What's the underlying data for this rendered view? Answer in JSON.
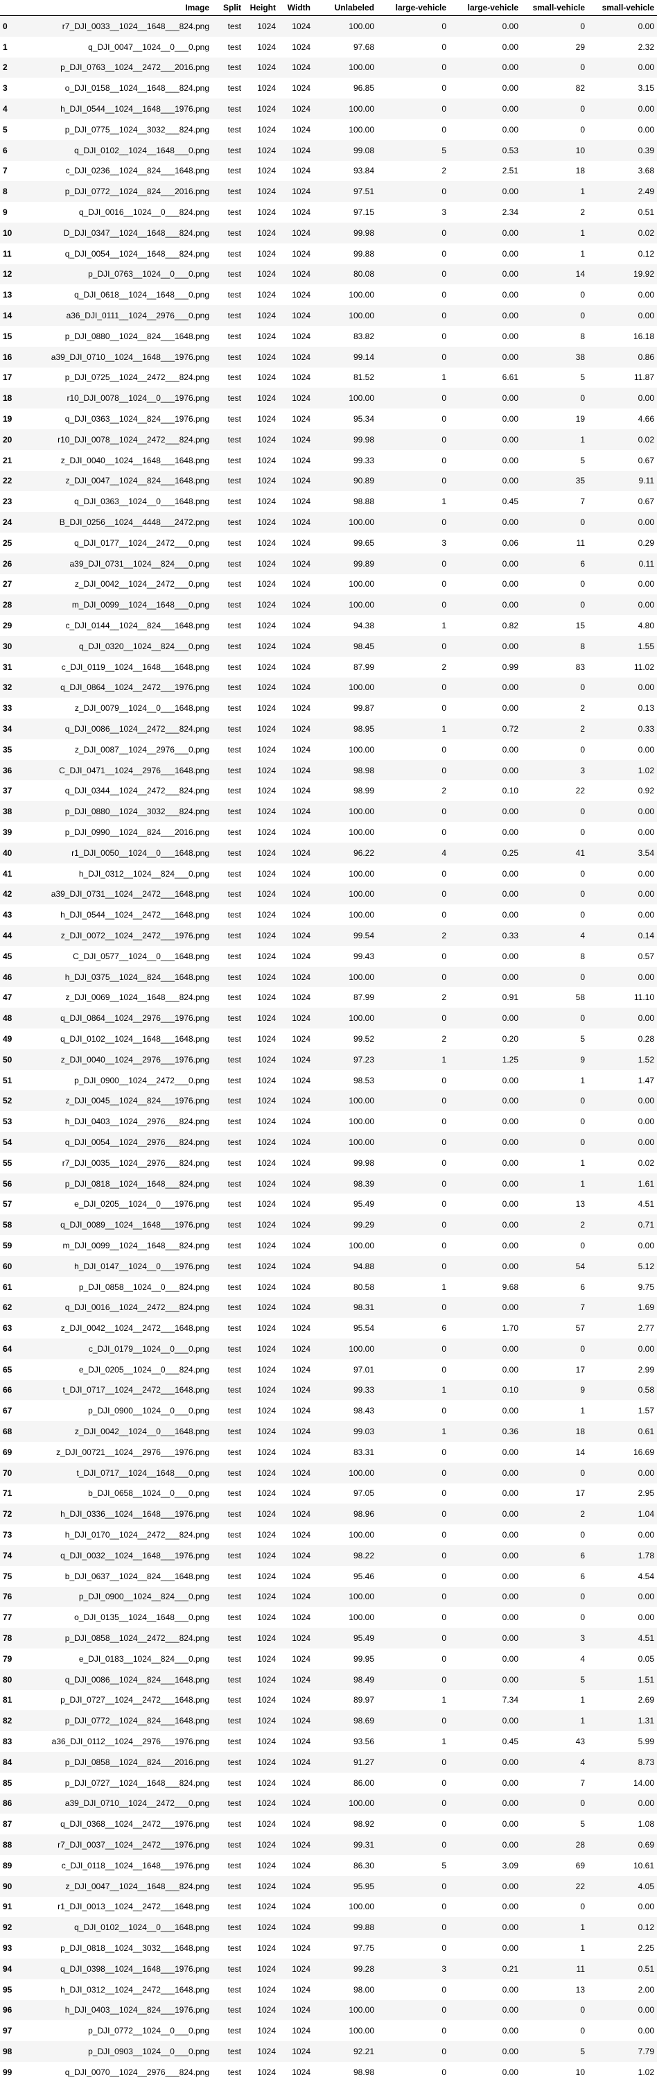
{
  "columns": [
    "",
    "Image",
    "Split",
    "Height",
    "Width",
    "Unlabeled",
    "large-vehicle",
    "large-vehicle",
    "small-vehicle",
    "small-vehicle"
  ],
  "rows": [
    [
      "0",
      "r7_DJI_0033__1024__1648___824.png",
      "test",
      "1024",
      "1024",
      "100.00",
      "0",
      "0.00",
      "0",
      "0.00"
    ],
    [
      "1",
      "q_DJI_0047__1024__0___0.png",
      "test",
      "1024",
      "1024",
      "97.68",
      "0",
      "0.00",
      "29",
      "2.32"
    ],
    [
      "2",
      "p_DJI_0763__1024__2472___2016.png",
      "test",
      "1024",
      "1024",
      "100.00",
      "0",
      "0.00",
      "0",
      "0.00"
    ],
    [
      "3",
      "o_DJI_0158__1024__1648___824.png",
      "test",
      "1024",
      "1024",
      "96.85",
      "0",
      "0.00",
      "82",
      "3.15"
    ],
    [
      "4",
      "h_DJI_0544__1024__1648___1976.png",
      "test",
      "1024",
      "1024",
      "100.00",
      "0",
      "0.00",
      "0",
      "0.00"
    ],
    [
      "5",
      "p_DJI_0775__1024__3032___824.png",
      "test",
      "1024",
      "1024",
      "100.00",
      "0",
      "0.00",
      "0",
      "0.00"
    ],
    [
      "6",
      "q_DJI_0102__1024__1648___0.png",
      "test",
      "1024",
      "1024",
      "99.08",
      "5",
      "0.53",
      "10",
      "0.39"
    ],
    [
      "7",
      "c_DJI_0236__1024__824___1648.png",
      "test",
      "1024",
      "1024",
      "93.84",
      "2",
      "2.51",
      "18",
      "3.68"
    ],
    [
      "8",
      "p_DJI_0772__1024__824___2016.png",
      "test",
      "1024",
      "1024",
      "97.51",
      "0",
      "0.00",
      "1",
      "2.49"
    ],
    [
      "9",
      "q_DJI_0016__1024__0___824.png",
      "test",
      "1024",
      "1024",
      "97.15",
      "3",
      "2.34",
      "2",
      "0.51"
    ],
    [
      "10",
      "D_DJI_0347__1024__1648___824.png",
      "test",
      "1024",
      "1024",
      "99.98",
      "0",
      "0.00",
      "1",
      "0.02"
    ],
    [
      "11",
      "q_DJI_0054__1024__1648___824.png",
      "test",
      "1024",
      "1024",
      "99.88",
      "0",
      "0.00",
      "1",
      "0.12"
    ],
    [
      "12",
      "p_DJI_0763__1024__0___0.png",
      "test",
      "1024",
      "1024",
      "80.08",
      "0",
      "0.00",
      "14",
      "19.92"
    ],
    [
      "13",
      "q_DJI_0618__1024__1648___0.png",
      "test",
      "1024",
      "1024",
      "100.00",
      "0",
      "0.00",
      "0",
      "0.00"
    ],
    [
      "14",
      "a36_DJI_0111__1024__2976___0.png",
      "test",
      "1024",
      "1024",
      "100.00",
      "0",
      "0.00",
      "0",
      "0.00"
    ],
    [
      "15",
      "p_DJI_0880__1024__824___1648.png",
      "test",
      "1024",
      "1024",
      "83.82",
      "0",
      "0.00",
      "8",
      "16.18"
    ],
    [
      "16",
      "a39_DJI_0710__1024__1648___1976.png",
      "test",
      "1024",
      "1024",
      "99.14",
      "0",
      "0.00",
      "38",
      "0.86"
    ],
    [
      "17",
      "p_DJI_0725__1024__2472___824.png",
      "test",
      "1024",
      "1024",
      "81.52",
      "1",
      "6.61",
      "5",
      "11.87"
    ],
    [
      "18",
      "r10_DJI_0078__1024__0___1976.png",
      "test",
      "1024",
      "1024",
      "100.00",
      "0",
      "0.00",
      "0",
      "0.00"
    ],
    [
      "19",
      "q_DJI_0363__1024__824___1976.png",
      "test",
      "1024",
      "1024",
      "95.34",
      "0",
      "0.00",
      "19",
      "4.66"
    ],
    [
      "20",
      "r10_DJI_0078__1024__2472___824.png",
      "test",
      "1024",
      "1024",
      "99.98",
      "0",
      "0.00",
      "1",
      "0.02"
    ],
    [
      "21",
      "z_DJI_0040__1024__1648___1648.png",
      "test",
      "1024",
      "1024",
      "99.33",
      "0",
      "0.00",
      "5",
      "0.67"
    ],
    [
      "22",
      "z_DJI_0047__1024__824___1648.png",
      "test",
      "1024",
      "1024",
      "90.89",
      "0",
      "0.00",
      "35",
      "9.11"
    ],
    [
      "23",
      "q_DJI_0363__1024__0___1648.png",
      "test",
      "1024",
      "1024",
      "98.88",
      "1",
      "0.45",
      "7",
      "0.67"
    ],
    [
      "24",
      "B_DJI_0256__1024__4448___2472.png",
      "test",
      "1024",
      "1024",
      "100.00",
      "0",
      "0.00",
      "0",
      "0.00"
    ],
    [
      "25",
      "q_DJI_0177__1024__2472___0.png",
      "test",
      "1024",
      "1024",
      "99.65",
      "3",
      "0.06",
      "11",
      "0.29"
    ],
    [
      "26",
      "a39_DJI_0731__1024__824___0.png",
      "test",
      "1024",
      "1024",
      "99.89",
      "0",
      "0.00",
      "6",
      "0.11"
    ],
    [
      "27",
      "z_DJI_0042__1024__2472___0.png",
      "test",
      "1024",
      "1024",
      "100.00",
      "0",
      "0.00",
      "0",
      "0.00"
    ],
    [
      "28",
      "m_DJI_0099__1024__1648___0.png",
      "test",
      "1024",
      "1024",
      "100.00",
      "0",
      "0.00",
      "0",
      "0.00"
    ],
    [
      "29",
      "c_DJI_0144__1024__824___1648.png",
      "test",
      "1024",
      "1024",
      "94.38",
      "1",
      "0.82",
      "15",
      "4.80"
    ],
    [
      "30",
      "q_DJI_0320__1024__824___0.png",
      "test",
      "1024",
      "1024",
      "98.45",
      "0",
      "0.00",
      "8",
      "1.55"
    ],
    [
      "31",
      "c_DJI_0119__1024__1648___1648.png",
      "test",
      "1024",
      "1024",
      "87.99",
      "2",
      "0.99",
      "83",
      "11.02"
    ],
    [
      "32",
      "q_DJI_0864__1024__2472___1976.png",
      "test",
      "1024",
      "1024",
      "100.00",
      "0",
      "0.00",
      "0",
      "0.00"
    ],
    [
      "33",
      "z_DJI_0079__1024__0___1648.png",
      "test",
      "1024",
      "1024",
      "99.87",
      "0",
      "0.00",
      "2",
      "0.13"
    ],
    [
      "34",
      "q_DJI_0086__1024__2472___824.png",
      "test",
      "1024",
      "1024",
      "98.95",
      "1",
      "0.72",
      "2",
      "0.33"
    ],
    [
      "35",
      "z_DJI_0087__1024__2976___0.png",
      "test",
      "1024",
      "1024",
      "100.00",
      "0",
      "0.00",
      "0",
      "0.00"
    ],
    [
      "36",
      "C_DJI_0471__1024__2976___1648.png",
      "test",
      "1024",
      "1024",
      "98.98",
      "0",
      "0.00",
      "3",
      "1.02"
    ],
    [
      "37",
      "q_DJI_0344__1024__2472___824.png",
      "test",
      "1024",
      "1024",
      "98.99",
      "2",
      "0.10",
      "22",
      "0.92"
    ],
    [
      "38",
      "p_DJI_0880__1024__3032___824.png",
      "test",
      "1024",
      "1024",
      "100.00",
      "0",
      "0.00",
      "0",
      "0.00"
    ],
    [
      "39",
      "p_DJI_0990__1024__824___2016.png",
      "test",
      "1024",
      "1024",
      "100.00",
      "0",
      "0.00",
      "0",
      "0.00"
    ],
    [
      "40",
      "r1_DJI_0050__1024__0___1648.png",
      "test",
      "1024",
      "1024",
      "96.22",
      "4",
      "0.25",
      "41",
      "3.54"
    ],
    [
      "41",
      "h_DJI_0312__1024__824___0.png",
      "test",
      "1024",
      "1024",
      "100.00",
      "0",
      "0.00",
      "0",
      "0.00"
    ],
    [
      "42",
      "a39_DJI_0731__1024__2472___1648.png",
      "test",
      "1024",
      "1024",
      "100.00",
      "0",
      "0.00",
      "0",
      "0.00"
    ],
    [
      "43",
      "h_DJI_0544__1024__2472___1648.png",
      "test",
      "1024",
      "1024",
      "100.00",
      "0",
      "0.00",
      "0",
      "0.00"
    ],
    [
      "44",
      "z_DJI_0072__1024__2472___1976.png",
      "test",
      "1024",
      "1024",
      "99.54",
      "2",
      "0.33",
      "4",
      "0.14"
    ],
    [
      "45",
      "C_DJI_0577__1024__0___1648.png",
      "test",
      "1024",
      "1024",
      "99.43",
      "0",
      "0.00",
      "8",
      "0.57"
    ],
    [
      "46",
      "h_DJI_0375__1024__824___1648.png",
      "test",
      "1024",
      "1024",
      "100.00",
      "0",
      "0.00",
      "0",
      "0.00"
    ],
    [
      "47",
      "z_DJI_0069__1024__1648___824.png",
      "test",
      "1024",
      "1024",
      "87.99",
      "2",
      "0.91",
      "58",
      "11.10"
    ],
    [
      "48",
      "q_DJI_0864__1024__2976___1976.png",
      "test",
      "1024",
      "1024",
      "100.00",
      "0",
      "0.00",
      "0",
      "0.00"
    ],
    [
      "49",
      "q_DJI_0102__1024__1648___1648.png",
      "test",
      "1024",
      "1024",
      "99.52",
      "2",
      "0.20",
      "5",
      "0.28"
    ],
    [
      "50",
      "z_DJI_0040__1024__2976___1976.png",
      "test",
      "1024",
      "1024",
      "97.23",
      "1",
      "1.25",
      "9",
      "1.52"
    ],
    [
      "51",
      "p_DJI_0900__1024__2472___0.png",
      "test",
      "1024",
      "1024",
      "98.53",
      "0",
      "0.00",
      "1",
      "1.47"
    ],
    [
      "52",
      "z_DJI_0045__1024__824___1976.png",
      "test",
      "1024",
      "1024",
      "100.00",
      "0",
      "0.00",
      "0",
      "0.00"
    ],
    [
      "53",
      "h_DJI_0403__1024__2976___824.png",
      "test",
      "1024",
      "1024",
      "100.00",
      "0",
      "0.00",
      "0",
      "0.00"
    ],
    [
      "54",
      "q_DJI_0054__1024__2976___824.png",
      "test",
      "1024",
      "1024",
      "100.00",
      "0",
      "0.00",
      "0",
      "0.00"
    ],
    [
      "55",
      "r7_DJI_0035__1024__2976___824.png",
      "test",
      "1024",
      "1024",
      "99.98",
      "0",
      "0.00",
      "1",
      "0.02"
    ],
    [
      "56",
      "p_DJI_0818__1024__1648___824.png",
      "test",
      "1024",
      "1024",
      "98.39",
      "0",
      "0.00",
      "1",
      "1.61"
    ],
    [
      "57",
      "e_DJI_0205__1024__0___1976.png",
      "test",
      "1024",
      "1024",
      "95.49",
      "0",
      "0.00",
      "13",
      "4.51"
    ],
    [
      "58",
      "q_DJI_0089__1024__1648___1976.png",
      "test",
      "1024",
      "1024",
      "99.29",
      "0",
      "0.00",
      "2",
      "0.71"
    ],
    [
      "59",
      "m_DJI_0099__1024__1648___824.png",
      "test",
      "1024",
      "1024",
      "100.00",
      "0",
      "0.00",
      "0",
      "0.00"
    ],
    [
      "60",
      "h_DJI_0147__1024__0___1976.png",
      "test",
      "1024",
      "1024",
      "94.88",
      "0",
      "0.00",
      "54",
      "5.12"
    ],
    [
      "61",
      "p_DJI_0858__1024__0___824.png",
      "test",
      "1024",
      "1024",
      "80.58",
      "1",
      "9.68",
      "6",
      "9.75"
    ],
    [
      "62",
      "q_DJI_0016__1024__2472___824.png",
      "test",
      "1024",
      "1024",
      "98.31",
      "0",
      "0.00",
      "7",
      "1.69"
    ],
    [
      "63",
      "z_DJI_0042__1024__2472___1648.png",
      "test",
      "1024",
      "1024",
      "95.54",
      "6",
      "1.70",
      "57",
      "2.77"
    ],
    [
      "64",
      "c_DJI_0179__1024__0___0.png",
      "test",
      "1024",
      "1024",
      "100.00",
      "0",
      "0.00",
      "0",
      "0.00"
    ],
    [
      "65",
      "e_DJI_0205__1024__0___824.png",
      "test",
      "1024",
      "1024",
      "97.01",
      "0",
      "0.00",
      "17",
      "2.99"
    ],
    [
      "66",
      "t_DJI_0717__1024__2472___1648.png",
      "test",
      "1024",
      "1024",
      "99.33",
      "1",
      "0.10",
      "9",
      "0.58"
    ],
    [
      "67",
      "p_DJI_0900__1024__0___0.png",
      "test",
      "1024",
      "1024",
      "98.43",
      "0",
      "0.00",
      "1",
      "1.57"
    ],
    [
      "68",
      "z_DJI_0042__1024__0___1648.png",
      "test",
      "1024",
      "1024",
      "99.03",
      "1",
      "0.36",
      "18",
      "0.61"
    ],
    [
      "69",
      "z_DJI_00721__1024__2976___1976.png",
      "test",
      "1024",
      "1024",
      "83.31",
      "0",
      "0.00",
      "14",
      "16.69"
    ],
    [
      "70",
      "t_DJI_0717__1024__1648___0.png",
      "test",
      "1024",
      "1024",
      "100.00",
      "0",
      "0.00",
      "0",
      "0.00"
    ],
    [
      "71",
      "b_DJI_0658__1024__0___0.png",
      "test",
      "1024",
      "1024",
      "97.05",
      "0",
      "0.00",
      "17",
      "2.95"
    ],
    [
      "72",
      "h_DJI_0336__1024__1648___1976.png",
      "test",
      "1024",
      "1024",
      "98.96",
      "0",
      "0.00",
      "2",
      "1.04"
    ],
    [
      "73",
      "h_DJI_0170__1024__2472___824.png",
      "test",
      "1024",
      "1024",
      "100.00",
      "0",
      "0.00",
      "0",
      "0.00"
    ],
    [
      "74",
      "q_DJI_0032__1024__1648___1976.png",
      "test",
      "1024",
      "1024",
      "98.22",
      "0",
      "0.00",
      "6",
      "1.78"
    ],
    [
      "75",
      "b_DJI_0637__1024__824___1648.png",
      "test",
      "1024",
      "1024",
      "95.46",
      "0",
      "0.00",
      "6",
      "4.54"
    ],
    [
      "76",
      "p_DJI_0900__1024__824___0.png",
      "test",
      "1024",
      "1024",
      "100.00",
      "0",
      "0.00",
      "0",
      "0.00"
    ],
    [
      "77",
      "o_DJI_0135__1024__1648___0.png",
      "test",
      "1024",
      "1024",
      "100.00",
      "0",
      "0.00",
      "0",
      "0.00"
    ],
    [
      "78",
      "p_DJI_0858__1024__2472___824.png",
      "test",
      "1024",
      "1024",
      "95.49",
      "0",
      "0.00",
      "3",
      "4.51"
    ],
    [
      "79",
      "e_DJI_0183__1024__824___0.png",
      "test",
      "1024",
      "1024",
      "99.95",
      "0",
      "0.00",
      "4",
      "0.05"
    ],
    [
      "80",
      "q_DJI_0086__1024__824___1648.png",
      "test",
      "1024",
      "1024",
      "98.49",
      "0",
      "0.00",
      "5",
      "1.51"
    ],
    [
      "81",
      "p_DJI_0727__1024__2472___1648.png",
      "test",
      "1024",
      "1024",
      "89.97",
      "1",
      "7.34",
      "1",
      "2.69"
    ],
    [
      "82",
      "p_DJI_0772__1024__824___1648.png",
      "test",
      "1024",
      "1024",
      "98.69",
      "0",
      "0.00",
      "1",
      "1.31"
    ],
    [
      "83",
      "a36_DJI_0112__1024__2976___1976.png",
      "test",
      "1024",
      "1024",
      "93.56",
      "1",
      "0.45",
      "43",
      "5.99"
    ],
    [
      "84",
      "p_DJI_0858__1024__824___2016.png",
      "test",
      "1024",
      "1024",
      "91.27",
      "0",
      "0.00",
      "4",
      "8.73"
    ],
    [
      "85",
      "p_DJI_0727__1024__1648___824.png",
      "test",
      "1024",
      "1024",
      "86.00",
      "0",
      "0.00",
      "7",
      "14.00"
    ],
    [
      "86",
      "a39_DJI_0710__1024__2472___0.png",
      "test",
      "1024",
      "1024",
      "100.00",
      "0",
      "0.00",
      "0",
      "0.00"
    ],
    [
      "87",
      "q_DJI_0368__1024__2472___1976.png",
      "test",
      "1024",
      "1024",
      "98.92",
      "0",
      "0.00",
      "5",
      "1.08"
    ],
    [
      "88",
      "r7_DJI_0037__1024__2472___1976.png",
      "test",
      "1024",
      "1024",
      "99.31",
      "0",
      "0.00",
      "28",
      "0.69"
    ],
    [
      "89",
      "c_DJI_0118__1024__1648___1976.png",
      "test",
      "1024",
      "1024",
      "86.30",
      "5",
      "3.09",
      "69",
      "10.61"
    ],
    [
      "90",
      "z_DJI_0047__1024__1648___824.png",
      "test",
      "1024",
      "1024",
      "95.95",
      "0",
      "0.00",
      "22",
      "4.05"
    ],
    [
      "91",
      "r1_DJI_0013__1024__2472___1648.png",
      "test",
      "1024",
      "1024",
      "100.00",
      "0",
      "0.00",
      "0",
      "0.00"
    ],
    [
      "92",
      "q_DJI_0102__1024__0___1648.png",
      "test",
      "1024",
      "1024",
      "99.88",
      "0",
      "0.00",
      "1",
      "0.12"
    ],
    [
      "93",
      "p_DJI_0818__1024__3032___1648.png",
      "test",
      "1024",
      "1024",
      "97.75",
      "0",
      "0.00",
      "1",
      "2.25"
    ],
    [
      "94",
      "q_DJI_0398__1024__1648___1976.png",
      "test",
      "1024",
      "1024",
      "99.28",
      "3",
      "0.21",
      "11",
      "0.51"
    ],
    [
      "95",
      "h_DJI_0312__1024__2472___1648.png",
      "test",
      "1024",
      "1024",
      "98.00",
      "0",
      "0.00",
      "13",
      "2.00"
    ],
    [
      "96",
      "h_DJI_0403__1024__824___1976.png",
      "test",
      "1024",
      "1024",
      "100.00",
      "0",
      "0.00",
      "0",
      "0.00"
    ],
    [
      "97",
      "p_DJI_0772__1024__0___0.png",
      "test",
      "1024",
      "1024",
      "100.00",
      "0",
      "0.00",
      "0",
      "0.00"
    ],
    [
      "98",
      "p_DJI_0903__1024__0___0.png",
      "test",
      "1024",
      "1024",
      "92.21",
      "0",
      "0.00",
      "5",
      "7.79"
    ],
    [
      "99",
      "q_DJI_0070__1024__2976___824.png",
      "test",
      "1024",
      "1024",
      "98.98",
      "0",
      "0.00",
      "10",
      "1.02"
    ]
  ]
}
